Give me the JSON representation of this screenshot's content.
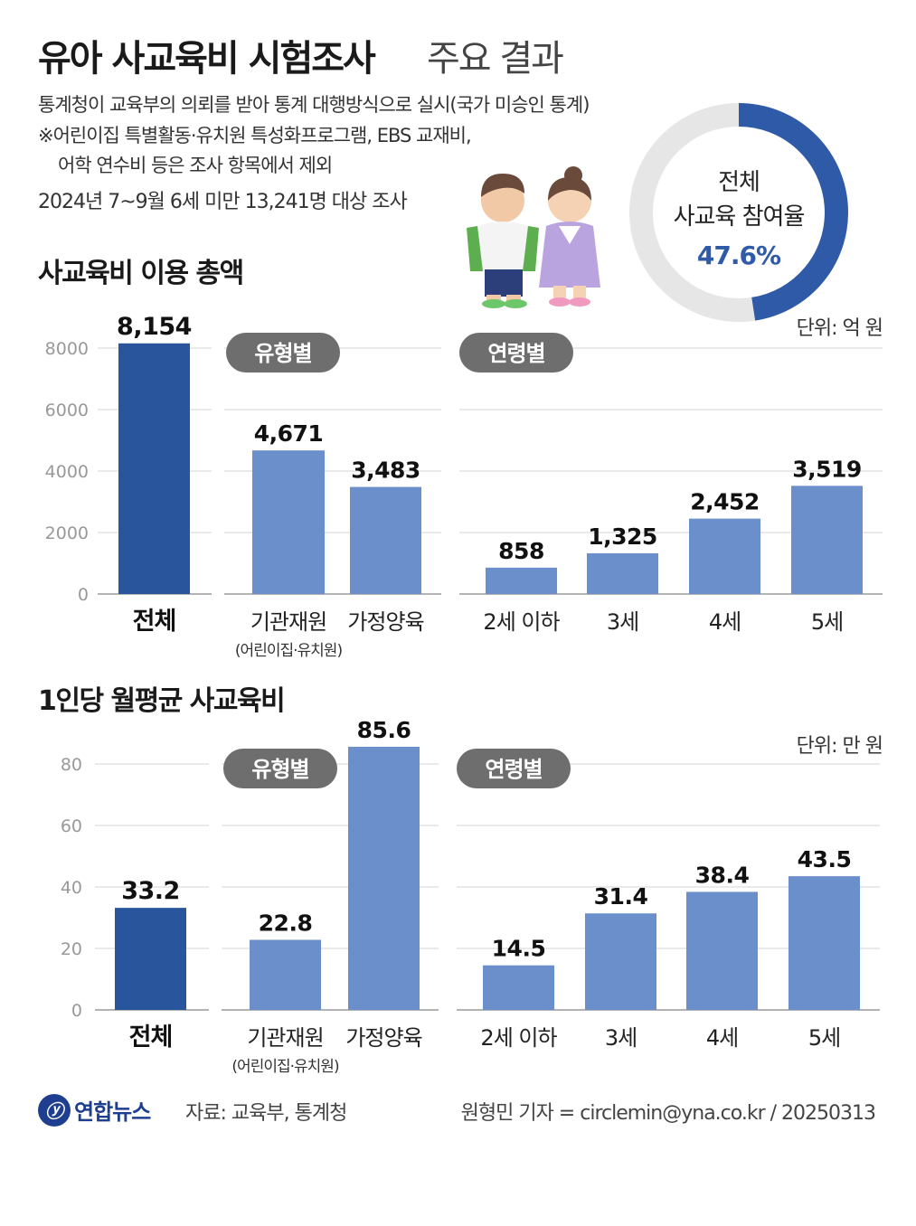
{
  "header": {
    "title_main": "유아 사교육비 시험조사",
    "title_sub": "주요 결과",
    "desc_lines": [
      "통계청이 교육부의 의뢰를 받아 통계 대행방식으로 실시(국가 미승인 통계)",
      "※어린이집 특별활동·유치원 특성화프로그램, EBS 교재비,",
      "어학 연수비 등은 조사 항목에서 제외",
      "2024년 7~9월 6세 미만 13,241명 대상 조사"
    ]
  },
  "participation": {
    "label_line1": "전체",
    "label_line2": "사교육 참여율",
    "value_text": "47.6%",
    "value": 47.6
  },
  "colors": {
    "dark_bar": "#28559b",
    "light_bar": "#6a8fcb",
    "pill": "#6e6e6e",
    "grid": "#d6d6d6",
    "donut_fill": "#2f5aa8",
    "donut_track": "#e6e6e6"
  },
  "chart_data": [
    {
      "type": "bar",
      "title": "사교육비 이용 총액",
      "unit_label": "단위: 억 원",
      "ylim": [
        0,
        8000
      ],
      "yticks": [
        "0",
        "2000",
        "4000",
        "6000",
        "8000"
      ],
      "ytick_values": [
        0,
        2000,
        4000,
        6000,
        8000
      ],
      "grid": true,
      "groups": [
        {
          "name": "",
          "pill": "",
          "categories": [
            {
              "label": "전체",
              "sub": "",
              "value": 8154,
              "value_text": "8,154",
              "color": "dark"
            }
          ]
        },
        {
          "name": "유형별",
          "pill": "유형별",
          "categories": [
            {
              "label": "기관재원",
              "sub": "(어린이집·유치원)",
              "value": 4671,
              "value_text": "4,671",
              "color": "light"
            },
            {
              "label": "가정양육",
              "sub": "",
              "value": 3483,
              "value_text": "3,483",
              "color": "light"
            }
          ]
        },
        {
          "name": "연령별",
          "pill": "연령별",
          "categories": [
            {
              "label": "2세 이하",
              "sub": "",
              "value": 858,
              "value_text": "858",
              "color": "light"
            },
            {
              "label": "3세",
              "sub": "",
              "value": 1325,
              "value_text": "1,325",
              "color": "light"
            },
            {
              "label": "4세",
              "sub": "",
              "value": 2452,
              "value_text": "2,452",
              "color": "light"
            },
            {
              "label": "5세",
              "sub": "",
              "value": 3519,
              "value_text": "3,519",
              "color": "light"
            }
          ]
        }
      ]
    },
    {
      "type": "bar",
      "title": "1인당 월평균 사교육비",
      "unit_label": "단위: 만 원",
      "ylim": [
        0,
        80
      ],
      "yticks": [
        "0",
        "20",
        "40",
        "60",
        "80"
      ],
      "ytick_values": [
        0,
        20,
        40,
        60,
        80
      ],
      "grid": true,
      "groups": [
        {
          "name": "",
          "pill": "",
          "categories": [
            {
              "label": "전체",
              "sub": "",
              "value": 33.2,
              "value_text": "33.2",
              "color": "dark"
            }
          ]
        },
        {
          "name": "유형별",
          "pill": "유형별",
          "categories": [
            {
              "label": "기관재원",
              "sub": "(어린이집·유치원)",
              "value": 22.8,
              "value_text": "22.8",
              "color": "light"
            },
            {
              "label": "가정양육",
              "sub": "",
              "value": 85.6,
              "value_text": "85.6",
              "color": "light"
            }
          ]
        },
        {
          "name": "연령별",
          "pill": "연령별",
          "categories": [
            {
              "label": "2세 이하",
              "sub": "",
              "value": 14.5,
              "value_text": "14.5",
              "color": "light"
            },
            {
              "label": "3세",
              "sub": "",
              "value": 31.4,
              "value_text": "31.4",
              "color": "light"
            },
            {
              "label": "4세",
              "sub": "",
              "value": 38.4,
              "value_text": "38.4",
              "color": "light"
            },
            {
              "label": "5세",
              "sub": "",
              "value": 43.5,
              "value_text": "43.5",
              "color": "light"
            }
          ]
        }
      ]
    }
  ],
  "footer": {
    "logo_text": "연합뉴스",
    "source": "자료: 교육부, 통계청",
    "credit": "원형민 기자 = circlemin@yna.co.kr / 20250313"
  }
}
